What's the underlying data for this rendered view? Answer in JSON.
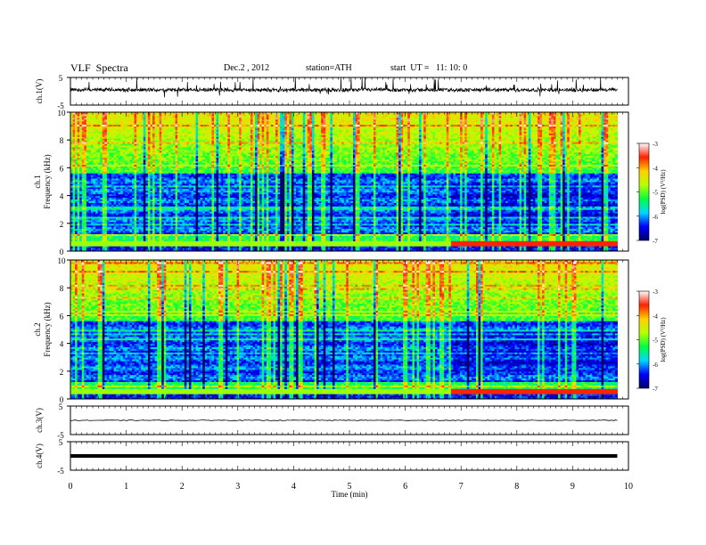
{
  "header": {
    "title": "VLF  Spectra",
    "date": "Dec.2 , 2012",
    "station": "station=ATH",
    "start": "start  UT =   11: 10: 0"
  },
  "chart_data": [
    {
      "type": "line",
      "panel": "ch1-waveform",
      "ylabel": "ch.1(V)",
      "ylim": [
        -5,
        5
      ],
      "yticks": [
        "5",
        "-5"
      ],
      "xlim": [
        0,
        10
      ],
      "series": [
        {
          "values_description": "",
          "baseline": 0.5,
          "noise_amplitude": 0.6,
          "spike_amplitude": 4
        }
      ]
    },
    {
      "type": "heatmap",
      "panel": "ch1-spectrogram",
      "ylabel": "ch.1\nFrequency (kHz)",
      "ylim": [
        0,
        10
      ],
      "yticks": [
        "0",
        "2",
        "4",
        "6",
        "8",
        "10"
      ],
      "xlim": [
        0,
        9.8
      ],
      "colorbar": {
        "label": "log(PSD) (V²/Hz)",
        "range": [
          -7,
          -3
        ],
        "ticks": [
          "-3",
          "-4",
          "-5",
          "-6",
          "-7"
        ]
      },
      "features": {
        "strong_band_khz": 0.6,
        "band_enhancement_start_min": 6.8,
        "dark_band_khz": [
          2,
          5
        ]
      }
    },
    {
      "type": "heatmap",
      "panel": "ch2-spectrogram",
      "ylabel": "ch.2\nFrequency (kHz)",
      "ylim": [
        0,
        10
      ],
      "yticks": [
        "0",
        "2",
        "4",
        "6",
        "8",
        "10"
      ],
      "xlim": [
        0,
        9.8
      ],
      "colorbar": {
        "label": "log(PSD) (V²/Hz)",
        "range": [
          -7,
          -3
        ],
        "ticks": [
          "-3",
          "-4",
          "-5",
          "-6",
          "-7"
        ]
      },
      "features": {
        "strong_band_khz": 0.6,
        "band_enhancement_start_min": 6.8,
        "dark_band_khz": [
          2,
          5
        ]
      }
    },
    {
      "type": "line",
      "panel": "ch3-waveform",
      "ylabel": "ch.3(V)",
      "ylim": [
        -5,
        5
      ],
      "yticks": [
        "5",
        "-5"
      ],
      "series": [
        {
          "baseline": 0
        }
      ]
    },
    {
      "type": "line",
      "panel": "ch4-waveform",
      "ylabel": "ch.4(V)",
      "ylim": [
        -5,
        5
      ],
      "yticks": [
        "5",
        "-5"
      ],
      "series": [
        {
          "baseline": 0
        }
      ]
    }
  ],
  "xaxis": {
    "label": "Time  (min)",
    "ticks": [
      "0",
      "1",
      "2",
      "3",
      "4",
      "5",
      "6",
      "7",
      "8",
      "9",
      "10"
    ]
  },
  "colors": {
    "colormap": [
      "#000066",
      "#0000ff",
      "#00d8ff",
      "#00ff40",
      "#b8ff00",
      "#ffd000",
      "#ff2000",
      "#ffffff"
    ]
  }
}
